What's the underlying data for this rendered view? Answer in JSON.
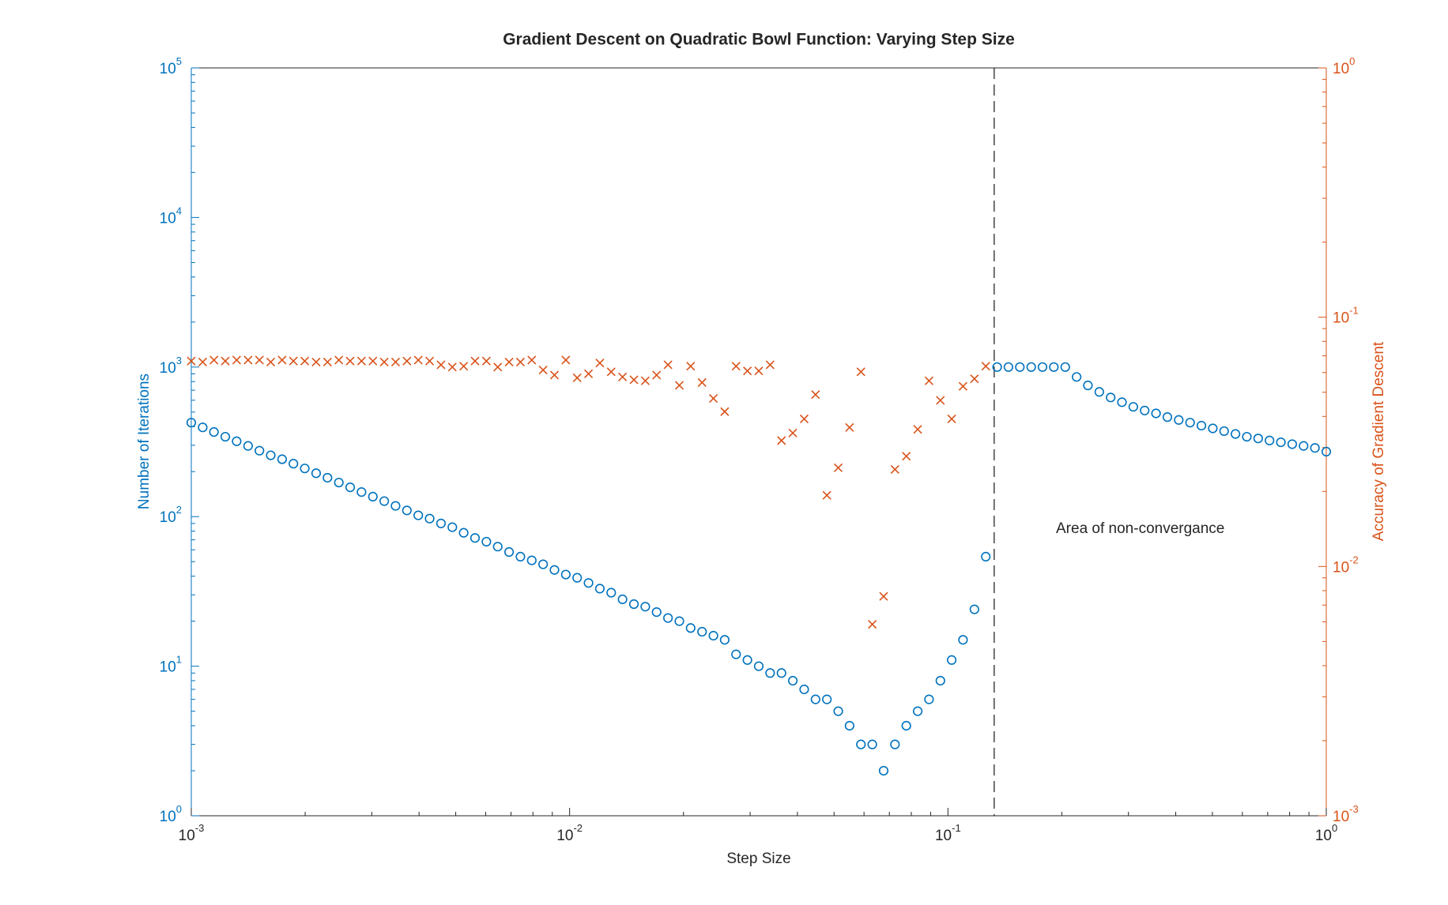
{
  "chart_data": {
    "type": "scatter",
    "title": "Gradient Descent on Quadratic Bowl Function: Varying Step Size",
    "xlabel": "Step Size",
    "ylabel": "Number of Iterations",
    "y2label": "Accuracy of Gradient Descent",
    "annotation": "Area of non-convergance",
    "xscale": "log",
    "yscale": "log",
    "y2scale": "log",
    "minor_ticks": true,
    "xlim": [
      0.001,
      1
    ],
    "ylim": [
      1,
      100000
    ],
    "y2lim": [
      0.001,
      1
    ],
    "xticks": [
      {
        "value": 0.001,
        "label": "10",
        "sup": "-3"
      },
      {
        "value": 0.01,
        "label": "10",
        "sup": "-2"
      },
      {
        "value": 0.1,
        "label": "10",
        "sup": "-1"
      },
      {
        "value": 1,
        "label": "10",
        "sup": "0"
      }
    ],
    "yticks": [
      {
        "value": 1,
        "label": "10",
        "sup": "0"
      },
      {
        "value": 10,
        "label": "10",
        "sup": "1"
      },
      {
        "value": 100,
        "label": "10",
        "sup": "2"
      },
      {
        "value": 1000,
        "label": "10",
        "sup": "3"
      },
      {
        "value": 10000,
        "label": "10",
        "sup": "4"
      },
      {
        "value": 100000,
        "label": "10",
        "sup": "5"
      }
    ],
    "y2ticks": [
      {
        "value": 0.001,
        "label": "10",
        "sup": "-3"
      },
      {
        "value": 0.01,
        "label": "10",
        "sup": "-2"
      },
      {
        "value": 0.1,
        "label": "10",
        "sup": "-1"
      },
      {
        "value": 1,
        "label": "10",
        "sup": "0"
      }
    ],
    "vlines": [
      0.1325
    ],
    "x": [
      0.001,
      0.001072,
      0.001148,
      0.00123,
      0.001318,
      0.001413,
      0.001514,
      0.001622,
      0.001738,
      0.001862,
      0.001995,
      0.002138,
      0.002291,
      0.002455,
      0.00263,
      0.002818,
      0.00302,
      0.003236,
      0.003467,
      0.003715,
      0.003981,
      0.004266,
      0.004571,
      0.004898,
      0.005248,
      0.005623,
      0.006026,
      0.006457,
      0.006918,
      0.007413,
      0.007943,
      0.008511,
      0.00912,
      0.009772,
      0.01047,
      0.01122,
      0.01202,
      0.01288,
      0.0138,
      0.01479,
      0.01585,
      0.01698,
      0.0182,
      0.0195,
      0.02089,
      0.02239,
      0.02399,
      0.0257,
      0.02754,
      0.02951,
      0.03162,
      0.03388,
      0.03631,
      0.0389,
      0.04169,
      0.04467,
      0.04786,
      0.05129,
      0.05495,
      0.05888,
      0.0631,
      0.06761,
      0.07244,
      0.07762,
      0.08318,
      0.08913,
      0.0955,
      0.1023,
      0.1096,
      0.1175,
      0.1259,
      0.1349,
      0.1445,
      0.1549,
      0.166,
      0.1778,
      0.1905,
      0.2042,
      0.2188,
      0.2344,
      0.2512,
      0.2692,
      0.2884,
      0.309,
      0.3311,
      0.3548,
      0.3802,
      0.4074,
      0.4365,
      0.4677,
      0.5012,
      0.537,
      0.5754,
      0.6166,
      0.6607,
      0.7079,
      0.7586,
      0.8128,
      0.871,
      0.9333,
      1
    ],
    "series": [
      {
        "color": "#0072BD",
        "marker": "o",
        "axis": "y",
        "values": [
          425,
          395,
          368,
          342,
          319,
          297,
          276,
          257,
          242,
          226,
          210,
          195,
          182,
          169,
          157,
          146,
          136,
          127,
          118,
          110,
          102,
          97,
          90,
          85,
          78,
          72,
          68,
          63,
          58,
          54,
          51,
          48,
          44,
          41,
          39,
          36,
          33,
          31,
          28,
          26,
          25,
          23,
          21,
          20,
          18,
          17,
          16,
          15,
          12,
          11,
          10,
          9,
          9,
          8,
          7,
          6,
          6,
          5,
          4,
          3,
          3,
          2,
          3,
          4,
          5,
          6,
          8,
          11,
          15,
          24,
          54,
          1000,
          1000,
          1000,
          1000,
          1000,
          1000,
          1000,
          859,
          754,
          682,
          626,
          582,
          542,
          512,
          490,
          463,
          443,
          425,
          406,
          389,
          373,
          357,
          342,
          333,
          323,
          314,
          305,
          297,
          288,
          272
        ]
      },
      {
        "color": "#D95319",
        "marker": "x",
        "axis": "y2",
        "values": [
          0.0667,
          0.0661,
          0.0673,
          0.0667,
          0.0673,
          0.0673,
          0.0673,
          0.0661,
          0.0673,
          0.0667,
          0.0667,
          0.0661,
          0.0661,
          0.0673,
          0.0667,
          0.0667,
          0.0667,
          0.0661,
          0.0661,
          0.0667,
          0.0673,
          0.0667,
          0.0644,
          0.0631,
          0.0636,
          0.0667,
          0.0667,
          0.0631,
          0.0661,
          0.0661,
          0.0673,
          0.0614,
          0.0586,
          0.0673,
          0.0571,
          0.0593,
          0.0655,
          0.0604,
          0.0576,
          0.0561,
          0.0556,
          0.0586,
          0.0644,
          0.0533,
          0.0636,
          0.0547,
          0.0472,
          0.0418,
          0.0636,
          0.0609,
          0.0609,
          0.0644,
          0.032,
          0.0343,
          0.0391,
          0.0489,
          0.0193,
          0.0249,
          0.0361,
          0.0604,
          0.00586,
          0.00759,
          0.0245,
          0.0277,
          0.0355,
          0.0556,
          0.0464,
          0.0391,
          0.0528,
          0.0566,
          0.0636,
          null,
          null,
          null,
          null,
          null,
          null,
          null,
          null,
          null,
          null,
          null,
          null,
          null,
          null,
          null,
          null,
          null,
          null,
          null,
          null,
          null,
          null,
          null,
          null,
          null,
          null,
          null,
          null,
          null,
          null
        ]
      }
    ]
  }
}
